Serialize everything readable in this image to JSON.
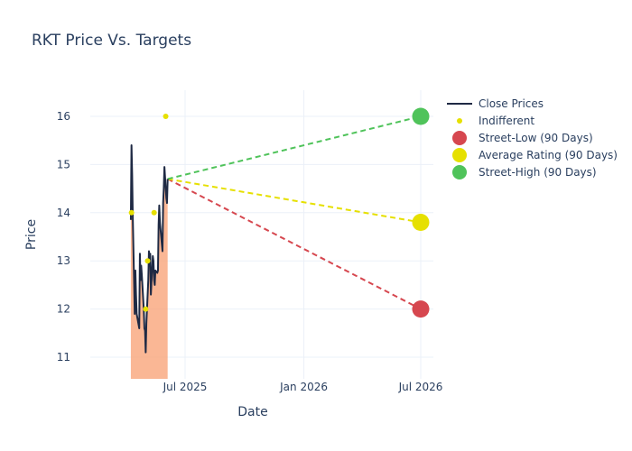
{
  "chart_data": {
    "type": "line",
    "title": "RKT Price Vs. Targets",
    "xlabel": "Date",
    "ylabel": "Price",
    "x_ticks": [
      {
        "date": "2025-07-01",
        "label": "Jul 2025"
      },
      {
        "date": "2026-01-01",
        "label": "Jan 2026"
      },
      {
        "date": "2026-07-01",
        "label": "Jul 2026"
      }
    ],
    "y_ticks": [
      11,
      12,
      13,
      14,
      15,
      16
    ],
    "xlim": [
      "2025-01-25",
      "2026-07-20"
    ],
    "ylim": [
      10.55,
      16.55
    ],
    "grid": true,
    "legend_position": "top-right",
    "colors": {
      "close": "#1f2a44",
      "fill": "#f9a57a",
      "indifferent": "#e6e000",
      "street_low": "#d6474f",
      "average": "#e6e000",
      "street_high": "#4fc35a",
      "grid": "#ebf0f8",
      "text": "#2a3f5f"
    },
    "series": [
      {
        "name": "Close Prices",
        "type": "line-fill",
        "points": [
          [
            "2025-04-08",
            13.85
          ],
          [
            "2025-04-09",
            15.4
          ],
          [
            "2025-04-10",
            14.8
          ],
          [
            "2025-04-11",
            13.9
          ],
          [
            "2025-04-14",
            11.9
          ],
          [
            "2025-04-15",
            12.8
          ],
          [
            "2025-04-16",
            12.3
          ],
          [
            "2025-04-17",
            11.9
          ],
          [
            "2025-04-21",
            11.6
          ],
          [
            "2025-04-22",
            13.15
          ],
          [
            "2025-04-23",
            12.6
          ],
          [
            "2025-04-24",
            12.9
          ],
          [
            "2025-04-25",
            12.7
          ],
          [
            "2025-04-28",
            12.0
          ],
          [
            "2025-04-29",
            11.6
          ],
          [
            "2025-04-30",
            11.55
          ],
          [
            "2025-05-01",
            11.1
          ],
          [
            "2025-05-02",
            11.7
          ],
          [
            "2025-05-05",
            12.6
          ],
          [
            "2025-05-06",
            13.2
          ],
          [
            "2025-05-07",
            12.9
          ],
          [
            "2025-05-08",
            13.15
          ],
          [
            "2025-05-09",
            12.3
          ],
          [
            "2025-05-12",
            13.1
          ],
          [
            "2025-05-13",
            13.0
          ],
          [
            "2025-05-14",
            12.6
          ],
          [
            "2025-05-15",
            12.5
          ],
          [
            "2025-05-16",
            12.8
          ],
          [
            "2025-05-19",
            12.75
          ],
          [
            "2025-05-20",
            12.8
          ],
          [
            "2025-05-21",
            13.75
          ],
          [
            "2025-05-22",
            14.15
          ],
          [
            "2025-05-23",
            13.8
          ],
          [
            "2025-05-27",
            13.2
          ],
          [
            "2025-05-28",
            14.2
          ],
          [
            "2025-05-29",
            14.5
          ],
          [
            "2025-05-30",
            14.95
          ],
          [
            "2025-06-02",
            14.3
          ],
          [
            "2025-06-03",
            14.2
          ],
          [
            "2025-06-04",
            14.7
          ]
        ]
      },
      {
        "name": "Indifferent",
        "type": "scatter",
        "points": [
          [
            "2025-04-09",
            14.0
          ],
          [
            "2025-05-01",
            12.0
          ],
          [
            "2025-05-04",
            13.0
          ],
          [
            "2025-05-14",
            14.0
          ],
          [
            "2025-06-01",
            16.0
          ]
        ]
      },
      {
        "name": "Street-Low (90 Days)",
        "type": "target",
        "from": [
          "2025-06-04",
          14.7
        ],
        "to": [
          "2026-07-01",
          12.0
        ]
      },
      {
        "name": "Average Rating (90 Days)",
        "type": "target",
        "from": [
          "2025-06-04",
          14.7
        ],
        "to": [
          "2026-07-01",
          13.8
        ]
      },
      {
        "name": "Street-High (90 Days)",
        "type": "target",
        "from": [
          "2025-06-04",
          14.7
        ],
        "to": [
          "2026-07-01",
          16.0
        ]
      }
    ],
    "legend": [
      {
        "label": "Close Prices",
        "symbol": "line",
        "color": "#1f2a44"
      },
      {
        "label": "Indifferent",
        "symbol": "small-dot",
        "color": "#e6e000"
      },
      {
        "label": "Street-Low (90 Days)",
        "symbol": "dot",
        "color": "#d6474f"
      },
      {
        "label": "Average Rating (90 Days)",
        "symbol": "dot",
        "color": "#e6e000"
      },
      {
        "label": "Street-High (90 Days)",
        "symbol": "dot",
        "color": "#4fc35a"
      }
    ]
  }
}
